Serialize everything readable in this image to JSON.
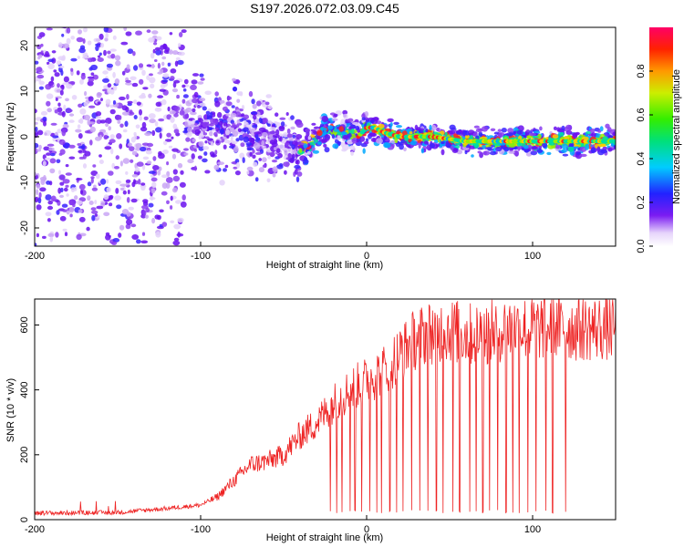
{
  "title": "S197.2026.072.03.09.C45",
  "chart_data": [
    {
      "type": "heatmap",
      "xlabel": "Height of straight line (km)",
      "ylabel": "Frequency (Hz)",
      "xlim": [
        -200,
        150
      ],
      "ylim": [
        -24,
        24
      ],
      "xticks": [
        -200,
        -100,
        0,
        100
      ],
      "yticks": [
        -20,
        -10,
        0,
        10,
        20
      ],
      "colorbar": {
        "label": "Normalized spectral amplitude",
        "range": [
          0,
          1
        ],
        "ticks": [
          0.0,
          0.2,
          0.4,
          0.6,
          0.8
        ]
      },
      "ridge": [
        [
          -120,
          1
        ],
        [
          -110,
          2
        ],
        [
          -100,
          3
        ],
        [
          -90,
          1
        ],
        [
          -80,
          2
        ],
        [
          -70,
          1
        ],
        [
          -60,
          0
        ],
        [
          -50,
          -1
        ],
        [
          -45,
          -2
        ],
        [
          -40,
          -3
        ],
        [
          -35,
          -2
        ],
        [
          -30,
          0
        ],
        [
          -25,
          1
        ],
        [
          -20,
          2
        ],
        [
          -15,
          1
        ],
        [
          -10,
          1
        ],
        [
          -5,
          0
        ],
        [
          0,
          2
        ],
        [
          5,
          2
        ],
        [
          10,
          1
        ],
        [
          20,
          0
        ],
        [
          40,
          0
        ],
        [
          60,
          -1
        ],
        [
          80,
          -1
        ],
        [
          100,
          -1
        ],
        [
          120,
          -1
        ],
        [
          150,
          -1
        ]
      ]
    },
    {
      "type": "line",
      "xlabel": "Height of straight line (km)",
      "ylabel": "SNR (10 * v/v)",
      "xlim": [
        -200,
        150
      ],
      "ylim": [
        0,
        680
      ],
      "xticks": [
        -200,
        -100,
        0,
        100
      ],
      "yticks": [
        0,
        200,
        400,
        600
      ],
      "color": "#ee2222",
      "envelope": [
        [
          -200,
          20
        ],
        [
          -150,
          22
        ],
        [
          -120,
          35
        ],
        [
          -100,
          45
        ],
        [
          -90,
          70
        ],
        [
          -80,
          120
        ],
        [
          -70,
          170
        ],
        [
          -60,
          180
        ],
        [
          -50,
          200
        ],
        [
          -40,
          260
        ],
        [
          -30,
          300
        ],
        [
          -20,
          360
        ],
        [
          -10,
          400
        ],
        [
          0,
          430
        ],
        [
          10,
          460
        ],
        [
          20,
          510
        ],
        [
          30,
          560
        ],
        [
          40,
          580
        ],
        [
          50,
          585
        ],
        [
          60,
          570
        ],
        [
          70,
          575
        ],
        [
          80,
          585
        ],
        [
          90,
          590
        ],
        [
          100,
          590
        ],
        [
          110,
          595
        ],
        [
          120,
          590
        ],
        [
          130,
          590
        ],
        [
          140,
          590
        ],
        [
          150,
          590
        ]
      ],
      "dropouts": [
        -22,
        -18,
        -15,
        -10,
        -7,
        -3,
        2,
        6,
        9,
        14,
        18,
        22,
        27,
        32,
        37,
        42,
        46,
        52,
        56,
        62,
        66,
        70,
        74,
        79,
        84,
        88,
        92,
        97,
        102,
        108,
        112,
        120
      ]
    }
  ]
}
